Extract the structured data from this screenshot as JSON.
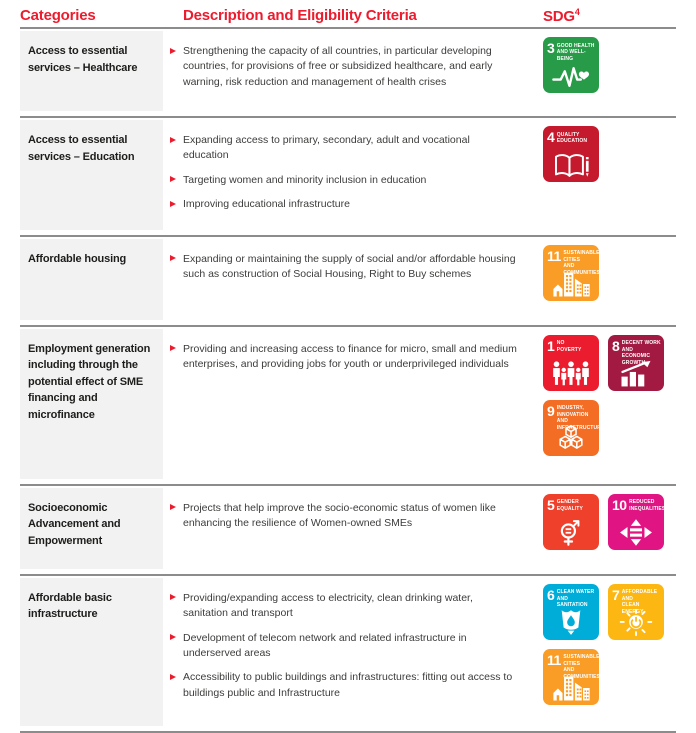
{
  "header": {
    "categories_label": "Categories",
    "description_label": "Description and Eligibility Criteria",
    "sdg_label": "SDG",
    "sdg_footnote": "4"
  },
  "colors": {
    "accent_red": "#EC1B2D",
    "divider_gray": "#8C8C8C",
    "category_bg": "#F2F2F2",
    "body_text": "#3C3C3B",
    "category_text": "#1D1D1B"
  },
  "rows": [
    {
      "category": "Access to essential services – Healthcare",
      "bullets": [
        "Strengthening the capacity of all countries, in particular developing countries, for provisions of free or subsidized healthcare, and early warning, risk reduction and management of health crises"
      ],
      "sdgs": [
        {
          "number": "3",
          "title": "GOOD HEALTH\nAND WELL-BEING",
          "color": "#279B48",
          "glyph": "heartbeat-icon"
        }
      ]
    },
    {
      "category": "Access to essential services – Education",
      "bullets": [
        "Expanding access to primary, secondary, adult and vocational education",
        "Targeting women and minority inclusion in education",
        "Improving educational infrastructure"
      ],
      "sdgs": [
        {
          "number": "4",
          "title": "QUALITY\nEDUCATION",
          "color": "#C5192D",
          "glyph": "book-icon"
        }
      ]
    },
    {
      "category": "Affordable housing",
      "bullets": [
        "Expanding or maintaining the supply of social and/or affordable housing such as construction of Social Housing, Right to Buy schemes"
      ],
      "sdgs": [
        {
          "number": "11",
          "title": "SUSTAINABLE CITIES\nAND COMMUNITIES",
          "color": "#F99D26",
          "glyph": "city-icon"
        }
      ]
    },
    {
      "category": "Employment generation including through the potential effect of SME financing and microfinance",
      "bullets": [
        "Providing and increasing access to finance for micro, small and medium enterprises, and providing jobs for youth or underprivileged individuals"
      ],
      "sdgs": [
        {
          "number": "1",
          "title": "NO\nPOVERTY",
          "color": "#EB1C2D",
          "glyph": "family-icon"
        },
        {
          "number": "8",
          "title": "DECENT WORK AND\nECONOMIC GROWTH",
          "color": "#A21942",
          "glyph": "growth-icon"
        },
        {
          "number": "9",
          "title": "INDUSTRY, INNOVATION\nAND INFRASTRUCTURE",
          "color": "#F36D25",
          "glyph": "cubes-icon"
        }
      ]
    },
    {
      "category": "Socioeconomic Advancement and Empowerment",
      "bullets": [
        "Projects that help improve the socio-economic status of women like enhancing the resilience of Women-owned SMEs"
      ],
      "sdgs": [
        {
          "number": "5",
          "title": "GENDER\nEQUALITY",
          "color": "#EF402B",
          "glyph": "gender-icon"
        },
        {
          "number": "10",
          "title": "REDUCED\nINEQUALITIES",
          "color": "#E01483",
          "glyph": "equality-icon"
        }
      ]
    },
    {
      "category": "Affordable basic infrastructure",
      "bullets": [
        "Providing/expanding access to electricity, clean drinking water, sanitation and transport",
        "Development of telecom network and related infrastructure in underserved areas",
        "Accessibility to public buildings and infrastructures: fitting out access to buildings public and Infrastructure"
      ],
      "sdgs": [
        {
          "number": "6",
          "title": "CLEAN WATER\nAND SANITATION",
          "color": "#00ADD8",
          "glyph": "water-icon"
        },
        {
          "number": "7",
          "title": "AFFORDABLE AND\nCLEAN ENERGY",
          "color": "#FDB713",
          "glyph": "sun-icon"
        },
        {
          "number": "11",
          "title": "SUSTAINABLE CITIES\nAND COMMUNITIES",
          "color": "#F99D26",
          "glyph": "city-icon"
        }
      ]
    }
  ]
}
